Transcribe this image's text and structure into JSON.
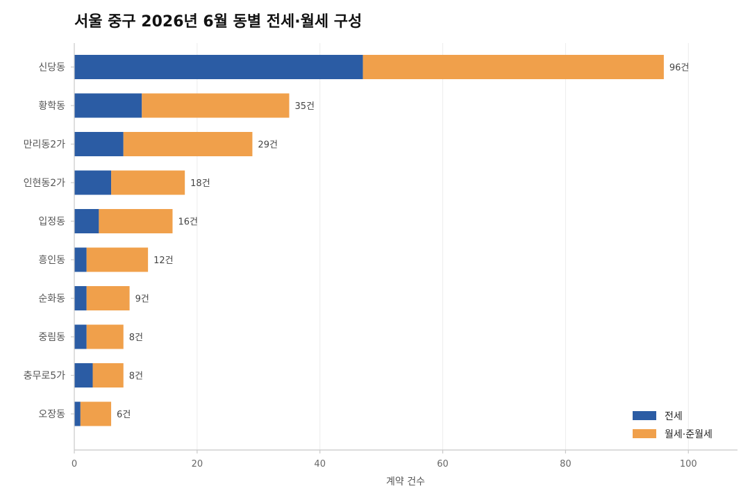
{
  "chart_data": {
    "type": "bar",
    "orientation": "horizontal",
    "stacked": true,
    "title": "서울 중구 2026년 6월 동별 전세·월세 구성",
    "xlabel": "계약 건수",
    "ylabel": "",
    "xlim": [
      0,
      108
    ],
    "xticks": [
      0,
      20,
      40,
      60,
      80,
      100
    ],
    "grid": true,
    "legend_position": "bottom-right",
    "total_suffix": "건",
    "categories": [
      "신당동",
      "황학동",
      "만리동2가",
      "인현동2가",
      "입정동",
      "흥인동",
      "순화동",
      "중림동",
      "충무로5가",
      "오장동"
    ],
    "series": [
      {
        "name": "전세",
        "color": "#2b5ca4",
        "values": [
          47,
          11,
          8,
          6,
          4,
          2,
          2,
          2,
          3,
          1
        ]
      },
      {
        "name": "월세·준월세",
        "color": "#f0a04b",
        "values": [
          49,
          24,
          21,
          12,
          12,
          10,
          7,
          6,
          5,
          5
        ]
      }
    ],
    "totals": [
      96,
      35,
      29,
      18,
      16,
      12,
      9,
      8,
      8,
      6
    ]
  }
}
